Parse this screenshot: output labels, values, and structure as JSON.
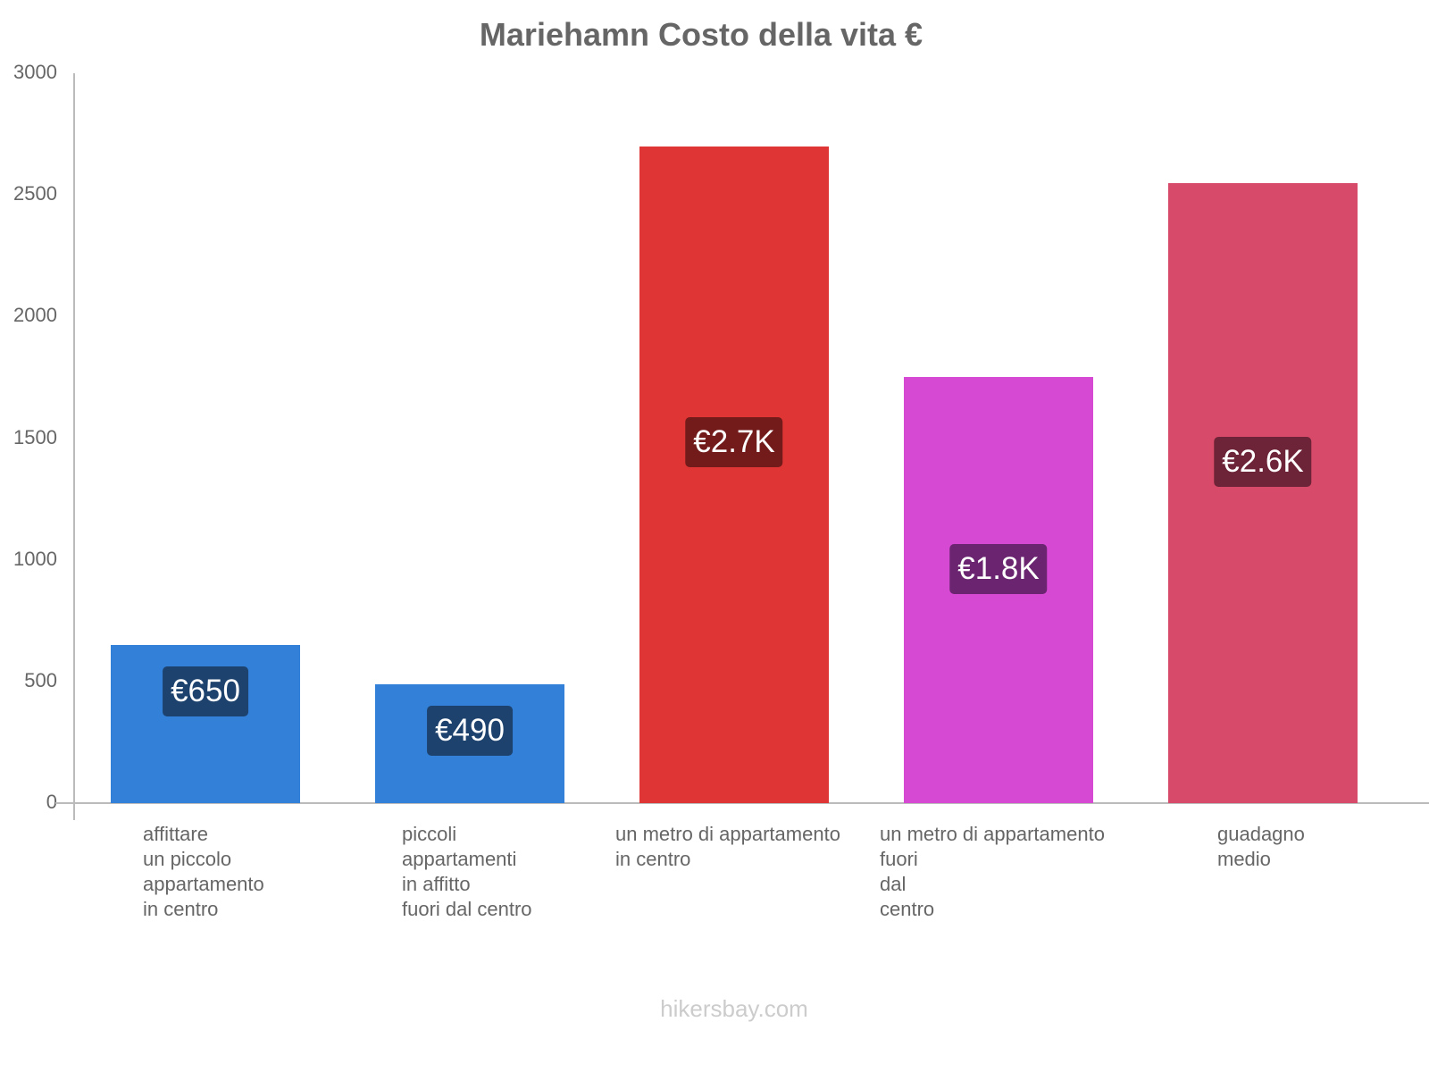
{
  "chart_data": {
    "type": "bar",
    "title": "Mariehamn Costo della vita €",
    "xlabel": "",
    "ylabel": "",
    "ylim": [
      0,
      3000
    ],
    "yticks": [
      0,
      500,
      1000,
      1500,
      2000,
      2500,
      3000
    ],
    "grid": false,
    "legend": null,
    "categories": [
      "affittare\nun piccolo\nappartamento\nin centro",
      "piccoli\nappartamenti\nin affitto\nfuori dal centro",
      "un metro di appartamento\nin centro",
      "un metro di appartamento\nfuori\ndal\ncentro",
      "guadagno\nmedio"
    ],
    "values": [
      650,
      490,
      2700,
      1750,
      2550
    ],
    "data_labels": [
      "€650",
      "€490",
      "€2.7K",
      "€1.8K",
      "€2.6K"
    ],
    "bar_colors": [
      "#3380d8",
      "#3380d8",
      "#e03535",
      "#d649d2",
      "#d84a69"
    ],
    "label_colors": [
      "#1d426e",
      "#1d426e",
      "#731b1b",
      "#6b2470",
      "#6e2438"
    ]
  },
  "header": {
    "title": "Mariehamn Costo della vita €"
  },
  "yaxis": {
    "ticks": [
      "0",
      "500",
      "1000",
      "1500",
      "2000",
      "2500",
      "3000"
    ]
  },
  "footer": {
    "watermark": "hikersbay.com"
  }
}
